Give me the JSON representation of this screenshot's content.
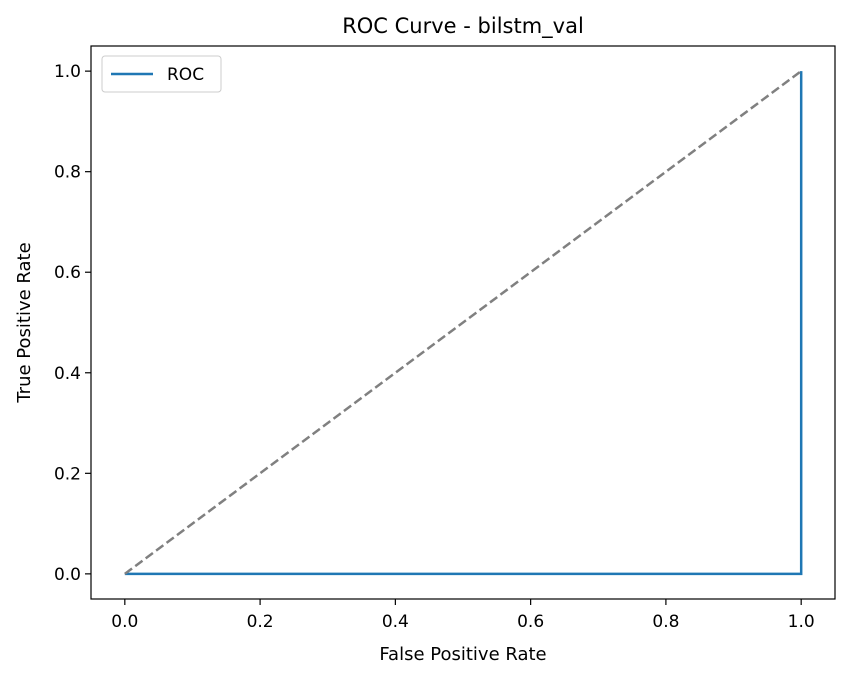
{
  "chart_data": {
    "type": "line",
    "title": "ROC Curve - bilstm_val",
    "xlabel": "False Positive Rate",
    "ylabel": "True Positive Rate",
    "xlim": [
      -0.05,
      1.05
    ],
    "ylim": [
      -0.05,
      1.05
    ],
    "xticks": [
      0.0,
      0.2,
      0.4,
      0.6,
      0.8,
      1.0
    ],
    "yticks": [
      0.0,
      0.2,
      0.4,
      0.6,
      0.8,
      1.0
    ],
    "xtick_labels": [
      "0.0",
      "0.2",
      "0.4",
      "0.6",
      "0.8",
      "1.0"
    ],
    "ytick_labels": [
      "0.0",
      "0.2",
      "0.4",
      "0.6",
      "0.8",
      "1.0"
    ],
    "grid": false,
    "legend": {
      "placement": "top-left",
      "entries": [
        "ROC"
      ]
    },
    "series": [
      {
        "name": "ROC",
        "color": "#1f77b4",
        "style": "solid",
        "x": [
          0.0,
          1.0,
          1.0
        ],
        "y": [
          0.0,
          0.0,
          1.0
        ]
      },
      {
        "color": "#808080",
        "style": "dashed",
        "x": [
          0.0,
          1.0
        ],
        "y": [
          0.0,
          1.0
        ]
      }
    ]
  }
}
